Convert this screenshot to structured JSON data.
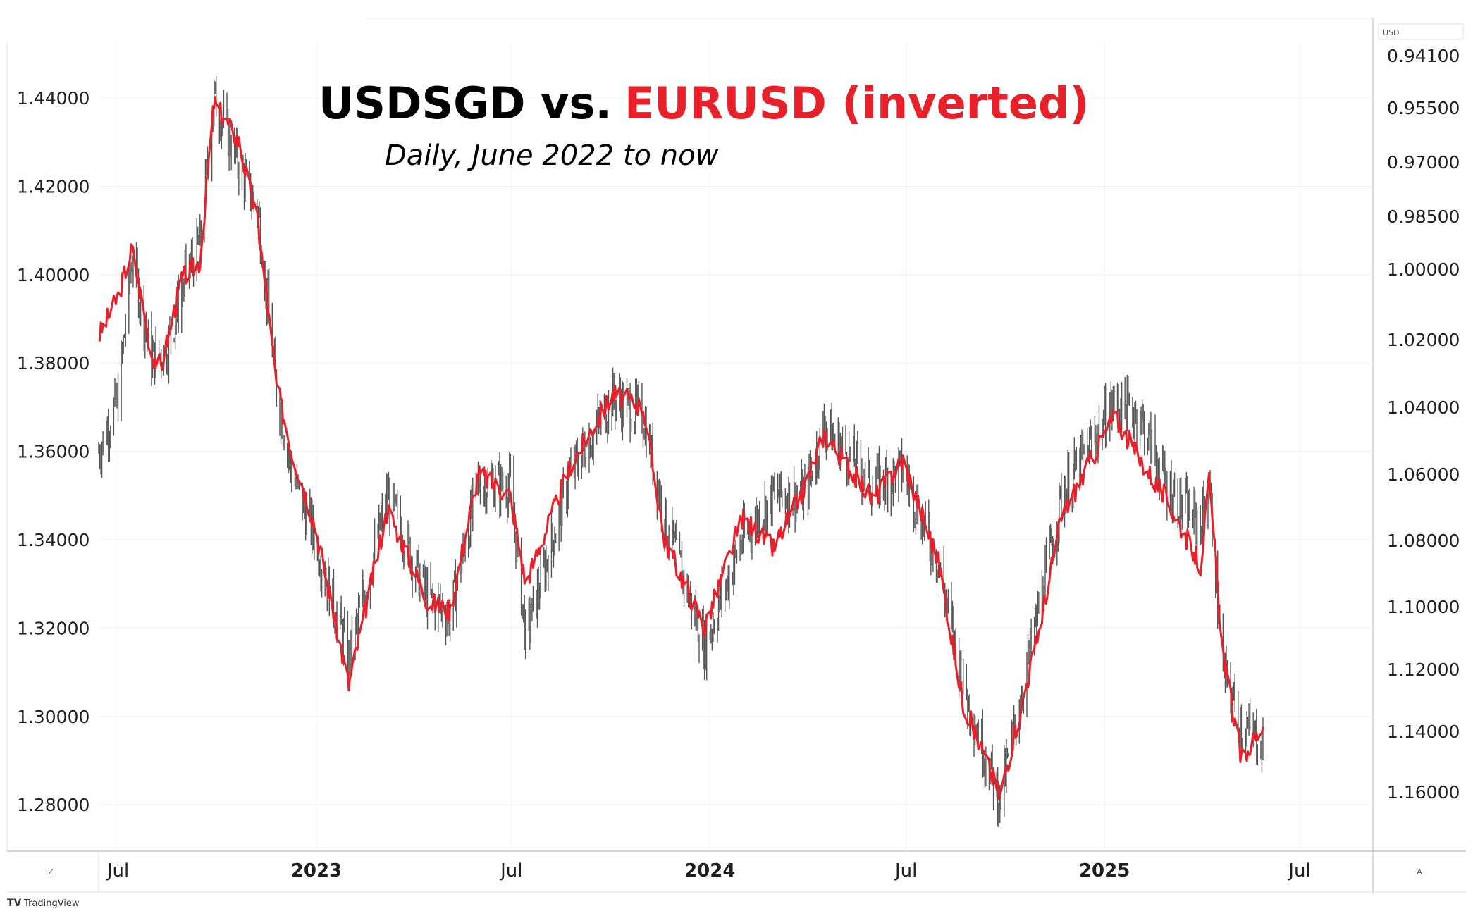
{
  "chart_data": {
    "type": "line",
    "title": "USDSGD vs.",
    "title_highlight": "EURUSD (inverted)",
    "subtitle": "Daily, June 2022 to now",
    "x_ticks": [
      {
        "label": "Jul",
        "date": "2022-07-01",
        "bold": false
      },
      {
        "label": "2023",
        "date": "2023-01-01",
        "bold": true
      },
      {
        "label": "Jul",
        "date": "2023-07-01",
        "bold": false
      },
      {
        "label": "2024",
        "date": "2024-01-01",
        "bold": true
      },
      {
        "label": "Jul",
        "date": "2024-07-01",
        "bold": false
      },
      {
        "label": "2025",
        "date": "2025-01-01",
        "bold": true
      },
      {
        "label": "Jul",
        "date": "2025-07-01",
        "bold": false
      }
    ],
    "x_range": [
      "2022-06-13",
      "2025-09-07"
    ],
    "left_axis": {
      "ticks": [
        "1.44000",
        "1.42000",
        "1.40000",
        "1.38000",
        "1.36000",
        "1.34000",
        "1.32000",
        "1.30000",
        "1.28000"
      ],
      "range": [
        1.2695,
        1.4526
      ]
    },
    "right_axis": {
      "unit_label": "USD",
      "ticks": [
        "0.94100",
        "0.95500",
        "0.97000",
        "0.98500",
        "1.00000",
        "1.02000",
        "1.04000",
        "1.06000",
        "1.08000",
        "1.10000",
        "1.12000",
        "1.14000",
        "1.16000"
      ],
      "inverted": true
    },
    "series": [
      {
        "name": "USDSGD",
        "color": "#555555",
        "style": "ohlc-bars",
        "points": [
          [
            "2022-06-13",
            1.36
          ],
          [
            "2022-07-01",
            1.372
          ],
          [
            "2022-07-14",
            1.404
          ],
          [
            "2022-08-01",
            1.381
          ],
          [
            "2022-08-15",
            1.383
          ],
          [
            "2022-09-01",
            1.399
          ],
          [
            "2022-09-15",
            1.407
          ],
          [
            "2022-09-28",
            1.44
          ],
          [
            "2022-10-21",
            1.425
          ],
          [
            "2022-11-08",
            1.414
          ],
          [
            "2022-11-25",
            1.374
          ],
          [
            "2022-12-09",
            1.355
          ],
          [
            "2022-12-30",
            1.341
          ],
          [
            "2023-01-31",
            1.313
          ],
          [
            "2023-03-08",
            1.35
          ],
          [
            "2023-04-14",
            1.327
          ],
          [
            "2023-05-05",
            1.323
          ],
          [
            "2023-05-31",
            1.353
          ],
          [
            "2023-06-30",
            1.352
          ],
          [
            "2023-07-14",
            1.318
          ],
          [
            "2023-08-25",
            1.355
          ],
          [
            "2023-10-03",
            1.372
          ],
          [
            "2023-10-31",
            1.368
          ],
          [
            "2023-11-20",
            1.345
          ],
          [
            "2023-12-27",
            1.316
          ],
          [
            "2024-01-31",
            1.34
          ],
          [
            "2024-02-29",
            1.35
          ],
          [
            "2024-03-29",
            1.35
          ],
          [
            "2024-04-16",
            1.366
          ],
          [
            "2024-05-31",
            1.352
          ],
          [
            "2024-06-28",
            1.356
          ],
          [
            "2024-07-31",
            1.335
          ],
          [
            "2024-08-23",
            1.307
          ],
          [
            "2024-09-26",
            1.281
          ],
          [
            "2024-10-31",
            1.323
          ],
          [
            "2024-11-22",
            1.35
          ],
          [
            "2025-01-10",
            1.371
          ],
          [
            "2025-02-03",
            1.368
          ],
          [
            "2025-02-28",
            1.352
          ],
          [
            "2025-03-31",
            1.343
          ],
          [
            "2025-04-08",
            1.353
          ],
          [
            "2025-04-21",
            1.31
          ],
          [
            "2025-05-08",
            1.298
          ],
          [
            "2025-05-28",
            1.294
          ]
        ]
      },
      {
        "name": "EURUSD (inverted)",
        "color": "#e8202a",
        "style": "line",
        "points": [
          [
            "2022-06-13",
            1.386
          ],
          [
            "2022-07-01",
            1.395
          ],
          [
            "2022-07-14",
            1.406
          ],
          [
            "2022-08-01",
            1.382
          ],
          [
            "2022-08-10",
            1.379
          ],
          [
            "2022-08-29",
            1.399
          ],
          [
            "2022-09-15",
            1.403
          ],
          [
            "2022-09-28",
            1.439
          ],
          [
            "2022-10-21",
            1.43
          ],
          [
            "2022-11-08",
            1.411
          ],
          [
            "2022-11-25",
            1.375
          ],
          [
            "2022-12-09",
            1.36
          ],
          [
            "2022-12-30",
            1.344
          ],
          [
            "2023-01-31",
            1.307
          ],
          [
            "2023-03-08",
            1.347
          ],
          [
            "2023-04-14",
            1.326
          ],
          [
            "2023-05-05",
            1.324
          ],
          [
            "2023-05-31",
            1.355
          ],
          [
            "2023-06-30",
            1.35
          ],
          [
            "2023-07-14",
            1.33
          ],
          [
            "2023-08-25",
            1.357
          ],
          [
            "2023-10-03",
            1.373
          ],
          [
            "2023-10-31",
            1.37
          ],
          [
            "2023-11-20",
            1.34
          ],
          [
            "2023-12-27",
            1.32
          ],
          [
            "2024-01-31",
            1.345
          ],
          [
            "2024-02-29",
            1.338
          ],
          [
            "2024-03-29",
            1.352
          ],
          [
            "2024-04-16",
            1.364
          ],
          [
            "2024-05-31",
            1.349
          ],
          [
            "2024-06-28",
            1.358
          ],
          [
            "2024-07-31",
            1.335
          ],
          [
            "2024-08-23",
            1.303
          ],
          [
            "2024-09-26",
            1.282
          ],
          [
            "2024-10-31",
            1.318
          ],
          [
            "2024-11-22",
            1.345
          ],
          [
            "2025-01-10",
            1.368
          ],
          [
            "2025-02-03",
            1.358
          ],
          [
            "2025-02-28",
            1.349
          ],
          [
            "2025-03-31",
            1.334
          ],
          [
            "2025-04-08",
            1.353
          ],
          [
            "2025-04-21",
            1.314
          ],
          [
            "2025-05-08",
            1.29
          ],
          [
            "2025-05-28",
            1.298
          ]
        ]
      }
    ],
    "legend": "none",
    "grid": true
  },
  "chrome": {
    "brand_label": "TradingView",
    "scale_left_label": "Z",
    "scale_right_label": "A"
  }
}
